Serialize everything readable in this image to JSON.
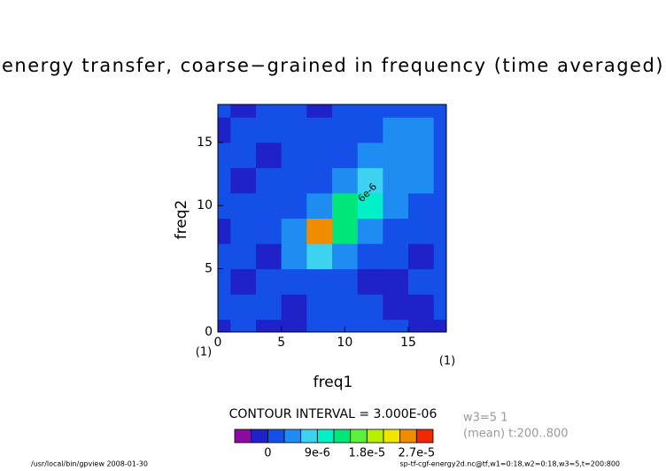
{
  "chart_data": {
    "type": "contour",
    "title": "energy transfer, coarse−grained in frequency (time averaged)",
    "x_label": "freq1",
    "y_label": "freq2",
    "x_unit": "(1)",
    "y_unit": "(1)",
    "xlim": [
      0,
      18
    ],
    "ylim": [
      0,
      18
    ],
    "xticks": [
      0,
      5,
      10,
      15
    ],
    "yticks": [
      0,
      5,
      10,
      15
    ],
    "x": [
      0,
      2,
      4,
      6,
      8,
      10,
      12,
      14,
      16,
      18
    ],
    "y": [
      0,
      2,
      4,
      6,
      8,
      10,
      12,
      14,
      16,
      18
    ],
    "z": [
      [
        -1e-06,
        1e-06,
        -1e-06,
        -1e-06,
        1e-06,
        1e-06,
        1e-06,
        1e-06,
        -1e-06,
        -1e-06
      ],
      [
        1e-06,
        1e-06,
        1e-06,
        -1e-06,
        1e-06,
        1e-06,
        1e-06,
        -1e-06,
        -1e-06,
        1e-06
      ],
      [
        1e-06,
        -1e-06,
        1e-06,
        1e-06,
        1e-06,
        1e-06,
        -1e-06,
        -1e-06,
        1e-06,
        1e-06
      ],
      [
        1e-06,
        1e-06,
        -1e-06,
        4e-06,
        8e-06,
        4e-06,
        1e-06,
        1e-06,
        -1e-06,
        1e-06
      ],
      [
        -1e-06,
        1e-06,
        1e-06,
        4e-06,
        2.5e-05,
        1.2e-05,
        4e-06,
        1e-06,
        1e-06,
        1e-06
      ],
      [
        1e-06,
        1e-06,
        1e-06,
        1e-06,
        4e-06,
        1.2e-05,
        9e-06,
        4e-06,
        1e-06,
        1e-06
      ],
      [
        1e-06,
        -1e-06,
        1e-06,
        1e-06,
        1e-06,
        4e-06,
        8e-06,
        5e-06,
        4e-06,
        1e-06
      ],
      [
        1e-06,
        1e-06,
        -1e-06,
        1e-06,
        1e-06,
        1e-06,
        4e-06,
        5e-06,
        4e-06,
        1e-06
      ],
      [
        -1e-06,
        1e-06,
        1e-06,
        1e-06,
        1e-06,
        1e-06,
        1e-06,
        4e-06,
        4e-06,
        1e-06
      ],
      [
        1e-06,
        -1e-06,
        1e-06,
        1e-06,
        -1e-06,
        1e-06,
        1e-06,
        1e-06,
        1e-06,
        1e-06
      ]
    ],
    "contour_label": "6e-6",
    "levels": [
      -6e-06,
      -3e-06,
      0,
      3e-06,
      6e-06,
      9e-06,
      1.2e-05,
      1.5e-05,
      1.8e-05,
      2.1e-05,
      2.4e-05,
      2.7e-05,
      3e-05
    ],
    "colors": [
      "#8c0aa0",
      "#1e22c8",
      "#1450e8",
      "#1e8cf0",
      "#3cd2f0",
      "#00f0c8",
      "#00e678",
      "#5af03c",
      "#b4f000",
      "#f0e600",
      "#f08c00",
      "#f02800"
    ],
    "colorbar_ticks": [
      0,
      {
        "value": 9e-06,
        "label": "9e-6"
      },
      {
        "value": 1.8e-05,
        "label": "1.8e-5"
      },
      {
        "value": 2.7e-05,
        "label": "2.7e-5"
      }
    ],
    "contour_interval": "CONTOUR INTERVAL = 3.000E-06",
    "info": [
      "w3=5 1",
      "(mean) t:200..800"
    ],
    "footer_left": "/usr/local/bin/gpview  2008-01-30",
    "footer_right": "sp-tf-cgf-energy2d.nc@tf,w1=0:18,w2=0:18,w3=5,t=200:800"
  }
}
